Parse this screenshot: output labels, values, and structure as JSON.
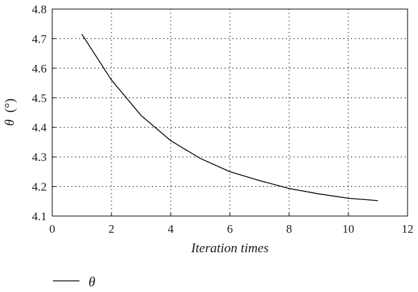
{
  "chart_data": {
    "type": "line",
    "xlabel": "Iteration times",
    "ylabel_symbol": "θ",
    "ylabel_unit": "(°)",
    "xlim": [
      0,
      12
    ],
    "ylim": [
      4.1,
      4.8
    ],
    "xticks": [
      "0",
      "2",
      "4",
      "6",
      "8",
      "10",
      "12"
    ],
    "yticks": [
      "4.1",
      "4.2",
      "4.3",
      "4.4",
      "4.5",
      "4.6",
      "4.7",
      "4.8"
    ],
    "grid": true,
    "legend_position": "bottom-left",
    "series": [
      {
        "name": "θ",
        "color": "#000000",
        "x": [
          1,
          2,
          3,
          4,
          5,
          6,
          7,
          8,
          9,
          10,
          11
        ],
        "y": [
          4.715,
          4.56,
          4.44,
          4.355,
          4.295,
          4.25,
          4.22,
          4.193,
          4.175,
          4.16,
          4.152
        ]
      }
    ]
  }
}
